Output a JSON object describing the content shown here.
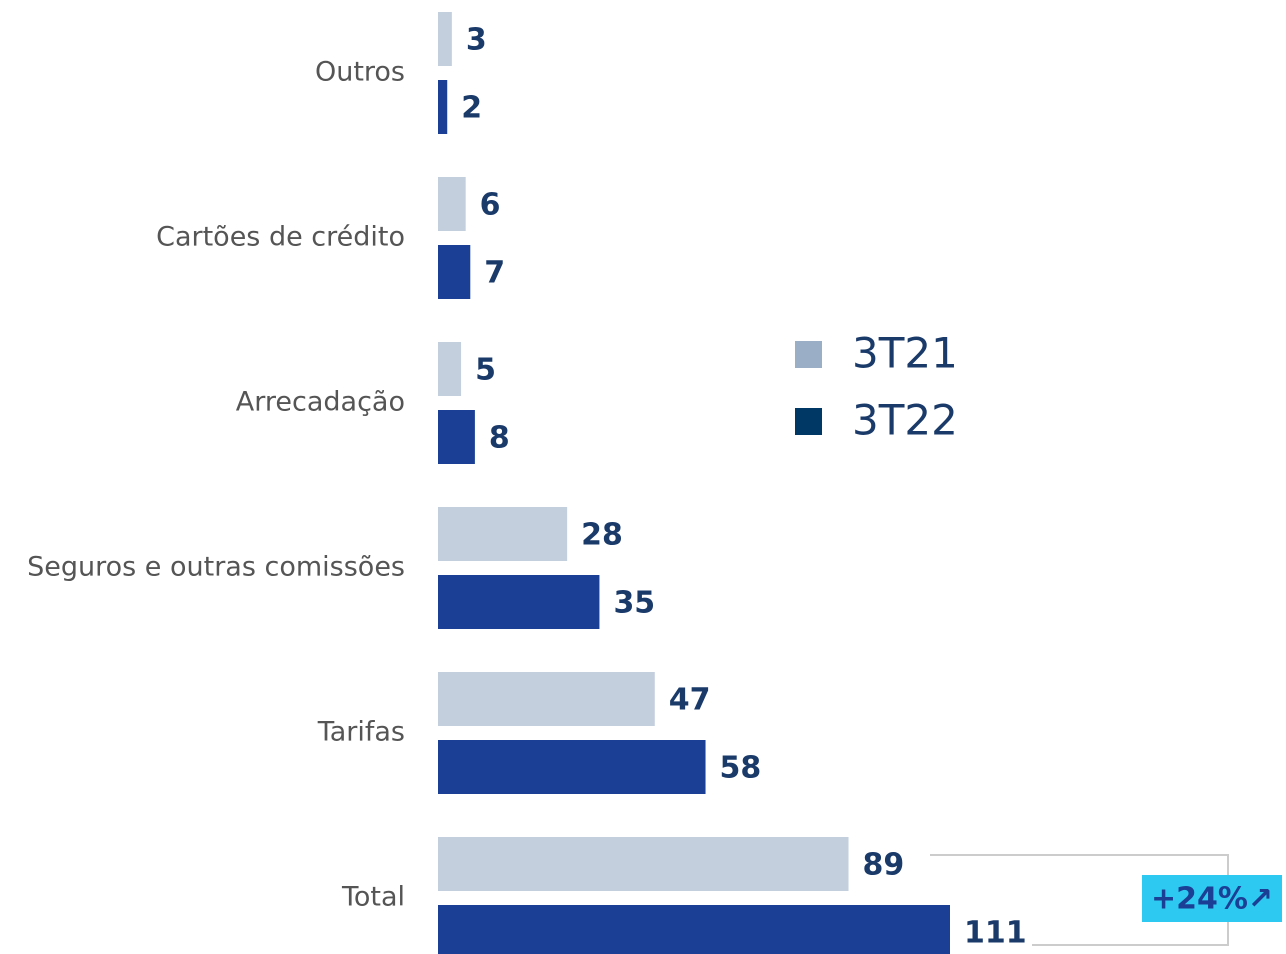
{
  "chart_data": {
    "type": "bar",
    "orientation": "horizontal",
    "categories": [
      "Outros",
      "Cartões de crédito",
      "Arrecadação",
      "Seguros e outras comissões",
      "Tarifas",
      "Total"
    ],
    "series": [
      {
        "name": "3T21",
        "color": "#c3cfdd",
        "legend_color": "#9aaec6",
        "values": [
          3,
          6,
          5,
          28,
          47,
          89
        ]
      },
      {
        "name": "3T22",
        "color": "#1a3f95",
        "legend_color": "#003865",
        "values": [
          2,
          7,
          8,
          35,
          58,
          111
        ]
      }
    ],
    "annotation": "+24%↗",
    "legend": "center"
  }
}
